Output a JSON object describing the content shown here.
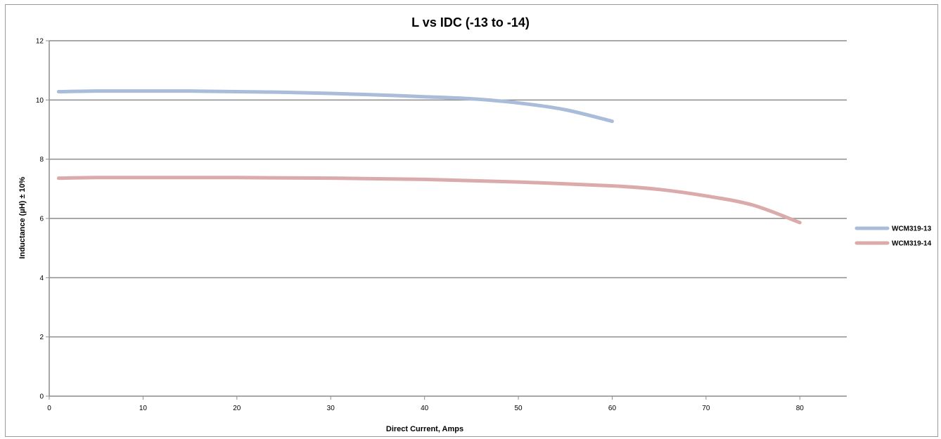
{
  "chart_data": {
    "type": "line",
    "title": "L vs IDC (-13 to -14)",
    "xlabel": "Direct Current, Amps",
    "ylabel": "Inductance (µH) ± 10%",
    "xlim": [
      0,
      85
    ],
    "ylim": [
      0,
      12
    ],
    "x_ticks": [
      "0",
      "10",
      "20",
      "30",
      "40",
      "50",
      "60",
      "70",
      "80"
    ],
    "y_ticks": [
      "0",
      "2",
      "4",
      "6",
      "8",
      "10",
      "12"
    ],
    "grid": "horizontal major gridlines",
    "legend_position": "right",
    "series": [
      {
        "name": "WCM319-13",
        "color": "#A9BCD9",
        "points": [
          {
            "x": 1,
            "y": 10.28
          },
          {
            "x": 5,
            "y": 10.3
          },
          {
            "x": 10,
            "y": 10.3
          },
          {
            "x": 15,
            "y": 10.3
          },
          {
            "x": 20,
            "y": 10.28
          },
          {
            "x": 25,
            "y": 10.26
          },
          {
            "x": 30,
            "y": 10.22
          },
          {
            "x": 35,
            "y": 10.17
          },
          {
            "x": 40,
            "y": 10.11
          },
          {
            "x": 45,
            "y": 10.04
          },
          {
            "x": 50,
            "y": 9.9
          },
          {
            "x": 55,
            "y": 9.67
          },
          {
            "x": 60,
            "y": 9.28
          }
        ]
      },
      {
        "name": "WCM319-14",
        "color": "#DBABAB",
        "points": [
          {
            "x": 1,
            "y": 7.36
          },
          {
            "x": 5,
            "y": 7.38
          },
          {
            "x": 10,
            "y": 7.38
          },
          {
            "x": 20,
            "y": 7.38
          },
          {
            "x": 30,
            "y": 7.36
          },
          {
            "x": 40,
            "y": 7.32
          },
          {
            "x": 50,
            "y": 7.23
          },
          {
            "x": 60,
            "y": 7.1
          },
          {
            "x": 65,
            "y": 6.98
          },
          {
            "x": 70,
            "y": 6.76
          },
          {
            "x": 75,
            "y": 6.45
          },
          {
            "x": 80,
            "y": 5.86
          }
        ]
      }
    ]
  }
}
